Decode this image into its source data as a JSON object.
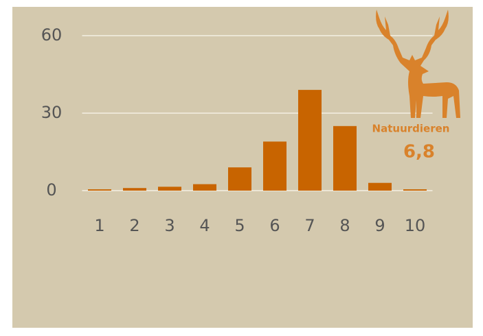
{
  "chart_data": {
    "type": "bar",
    "categories": [
      "1",
      "2",
      "3",
      "4",
      "5",
      "6",
      "7",
      "8",
      "9",
      "10"
    ],
    "values": [
      0.5,
      1,
      1.5,
      2.5,
      9,
      19,
      39,
      25,
      3,
      0.5
    ],
    "color": "#c86400",
    "ylim": [
      0,
      60
    ],
    "yticks": [
      0,
      30,
      60
    ],
    "grid": true,
    "annotation": {
      "label": "Natuurdieren",
      "value": "6,8",
      "color": "#d9822b"
    }
  }
}
